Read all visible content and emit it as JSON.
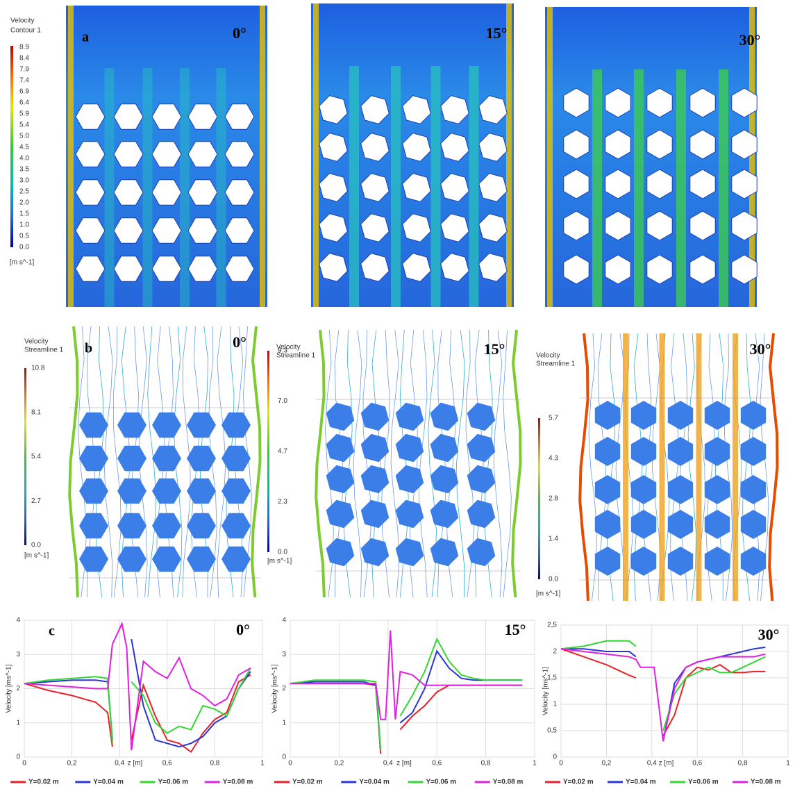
{
  "figure": {
    "panel_labels": [
      "a",
      "b",
      "c"
    ],
    "angles": [
      "0°",
      "15°",
      "30°"
    ]
  },
  "contour_legend": {
    "title": [
      "Velocity",
      "Contour 1"
    ],
    "ticks": [
      "8.9",
      "8.4",
      "7.9",
      "7.4",
      "6.9",
      "6.4",
      "5.9",
      "5.4",
      "5.0",
      "4.5",
      "4.0",
      "3.5",
      "3.0",
      "2.5",
      "2.0",
      "1.5",
      "1.0",
      "0.5",
      "0.0"
    ],
    "unit": "[m s^-1]"
  },
  "streamline_legends": [
    {
      "title": [
        "Velocity",
        "Streamline 1"
      ],
      "ticks": [
        "10.8",
        "8.1",
        "5.4",
        "2.7",
        "0.0"
      ],
      "unit": "[m s^-1]"
    },
    {
      "title": [
        "Velocity",
        "Streamline 1"
      ],
      "ticks": [
        "9.3",
        "7.0",
        "4.7",
        "2.3",
        "0.0"
      ],
      "unit": "[m s^-1]"
    },
    {
      "title": [
        "Velocity",
        "Streamline 1"
      ],
      "ticks": [
        "5.7",
        "4.3",
        "2.8",
        "1.4",
        "0.0"
      ],
      "unit": "[m s^-1]"
    }
  ],
  "chart_data": [
    {
      "type": "line",
      "xlabel": "z [m]",
      "ylabel": "Velocity [ms^-1]",
      "grid": true,
      "x": [
        0,
        0.1,
        0.2,
        0.3,
        0.35,
        0.37,
        0.39,
        0.41,
        0.43,
        0.45,
        0.5,
        0.55,
        0.6,
        0.65,
        0.7,
        0.75,
        0.8,
        0.85,
        0.9,
        0.95
      ],
      "xlim": [
        0,
        1
      ],
      "xticks": [
        0,
        {
          "value": 0.2,
          "label": "0,2"
        },
        {
          "value": 0.4,
          "label": "0,4"
        },
        {
          "value": 0.6,
          "label": "0,6"
        },
        {
          "value": 0.8,
          "label": "0,8"
        },
        1
      ],
      "ylim": [
        0,
        4
      ],
      "yticks": [
        0,
        1,
        2,
        3,
        4
      ],
      "series": [
        {
          "name": "Y=0.02 m",
          "color": "#e8202a",
          "values": [
            2.15,
            1.95,
            1.8,
            1.6,
            1.3,
            0.3,
            null,
            null,
            null,
            0.5,
            2.1,
            1.2,
            0.5,
            0.4,
            0.15,
            0.7,
            1.1,
            1.3,
            2.2,
            2.4
          ]
        },
        {
          "name": "Y=0.04 m",
          "color": "#2a35d8",
          "values": [
            2.15,
            2.2,
            2.25,
            2.25,
            2.2,
            0.5,
            null,
            null,
            null,
            3.45,
            1.5,
            0.5,
            0.4,
            0.3,
            0.4,
            0.6,
            1.0,
            1.2,
            2.0,
            2.5
          ]
        },
        {
          "name": "Y=0.06 m",
          "color": "#33d633",
          "values": [
            2.15,
            2.25,
            2.3,
            2.35,
            2.3,
            0.4,
            null,
            null,
            null,
            2.2,
            1.8,
            1.0,
            0.7,
            0.9,
            0.8,
            1.5,
            1.4,
            1.2,
            2.0,
            2.6
          ]
        },
        {
          "name": "Y=0.08 m",
          "color": "#e020e0",
          "values": [
            2.15,
            2.1,
            2.05,
            2.0,
            2.0,
            3.3,
            3.6,
            3.9,
            3.2,
            0.2,
            2.8,
            2.5,
            2.3,
            2.9,
            2.0,
            1.8,
            1.5,
            1.7,
            2.4,
            2.6
          ]
        }
      ]
    },
    {
      "type": "line",
      "xlabel": "z [m]",
      "ylabel": "Velocity [ms^-1]",
      "grid": true,
      "x": [
        0,
        0.1,
        0.2,
        0.3,
        0.35,
        0.37,
        0.39,
        0.41,
        0.43,
        0.45,
        0.5,
        0.55,
        0.6,
        0.65,
        0.7,
        0.75,
        0.8,
        0.85,
        0.9,
        0.95
      ],
      "xlim": [
        0,
        1
      ],
      "xticks": [
        0,
        {
          "value": 0.2,
          "label": "0,2"
        },
        {
          "value": 0.4,
          "label": "0,4"
        },
        {
          "value": 0.6,
          "label": "0,6"
        },
        {
          "value": 0.8,
          "label": "0,8"
        },
        1
      ],
      "ylim": [
        0,
        4
      ],
      "yticks": [
        0,
        1,
        2,
        3,
        4
      ],
      "series": [
        {
          "name": "Y=0.02 m",
          "color": "#e8202a",
          "values": [
            2.15,
            2.15,
            2.15,
            2.15,
            2.1,
            0.1,
            null,
            null,
            null,
            0.8,
            1.2,
            1.5,
            1.9,
            2.1,
            2.1,
            2.1,
            2.1,
            2.1,
            2.1,
            2.1
          ]
        },
        {
          "name": "Y=0.04 m",
          "color": "#2a35d8",
          "values": [
            2.15,
            2.2,
            2.2,
            2.2,
            2.1,
            0.2,
            null,
            null,
            null,
            1.0,
            1.3,
            2.0,
            3.1,
            2.6,
            2.3,
            2.25,
            2.25,
            2.25,
            2.25,
            2.25
          ]
        },
        {
          "name": "Y=0.06 m",
          "color": "#33d633",
          "values": [
            2.15,
            2.25,
            2.25,
            2.25,
            2.2,
            0.2,
            null,
            null,
            null,
            1.2,
            1.8,
            2.5,
            3.45,
            2.8,
            2.4,
            2.3,
            2.25,
            2.25,
            2.25,
            2.25
          ]
        },
        {
          "name": "Y=0.08 m",
          "color": "#e020e0",
          "values": [
            2.15,
            2.15,
            2.15,
            2.15,
            2.15,
            1.1,
            1.1,
            3.7,
            1.1,
            2.5,
            2.4,
            2.1,
            2.1,
            2.1,
            2.1,
            2.1,
            2.1,
            2.1,
            2.1,
            2.1
          ]
        }
      ]
    },
    {
      "type": "line",
      "xlabel": "z [m]",
      "ylabel": "Velocity [ms^-1]",
      "grid": true,
      "x": [
        0,
        0.1,
        0.2,
        0.3,
        0.33,
        0.35,
        0.37,
        0.39,
        0.41,
        0.45,
        0.5,
        0.55,
        0.6,
        0.65,
        0.7,
        0.75,
        0.8,
        0.85,
        0.9
      ],
      "xlim": [
        0,
        1
      ],
      "xticks": [
        0,
        {
          "value": 0.2,
          "label": "0,2"
        },
        {
          "value": 0.4,
          "label": "0,4"
        },
        {
          "value": 0.6,
          "label": "0,6"
        },
        {
          "value": 0.8,
          "label": "0,8"
        },
        1
      ],
      "ylim": [
        0,
        2.5
      ],
      "yticks": [
        0,
        {
          "value": 0.5,
          "label": "0,5"
        },
        1,
        {
          "value": 1.5,
          "label": "1,5"
        },
        2,
        {
          "value": 2.5,
          "label": "2,5"
        }
      ],
      "series": [
        {
          "name": "Y=0.02 m",
          "color": "#e8202a",
          "values": [
            2.05,
            1.9,
            1.75,
            1.55,
            1.5,
            null,
            null,
            null,
            null,
            0.4,
            0.8,
            1.5,
            1.7,
            1.65,
            1.75,
            1.6,
            1.6,
            1.62,
            1.62
          ]
        },
        {
          "name": "Y=0.04 m",
          "color": "#2a35d8",
          "values": [
            2.05,
            2.05,
            2.0,
            2.0,
            1.9,
            null,
            null,
            null,
            null,
            0.3,
            1.4,
            1.7,
            1.8,
            1.85,
            1.9,
            1.95,
            2.0,
            2.05,
            2.08
          ]
        },
        {
          "name": "Y=0.06 m",
          "color": "#33d633",
          "values": [
            2.05,
            2.1,
            2.2,
            2.2,
            2.1,
            null,
            null,
            null,
            null,
            0.5,
            1.2,
            1.5,
            1.6,
            1.7,
            1.6,
            1.6,
            1.7,
            1.8,
            1.9
          ]
        },
        {
          "name": "Y=0.08 m",
          "color": "#e020e0",
          "values": [
            2.05,
            2.0,
            1.95,
            1.9,
            1.85,
            1.7,
            1.7,
            1.7,
            1.7,
            0.3,
            1.3,
            1.7,
            1.8,
            1.85,
            1.9,
            1.9,
            1.9,
            1.9,
            1.95
          ]
        }
      ]
    }
  ]
}
